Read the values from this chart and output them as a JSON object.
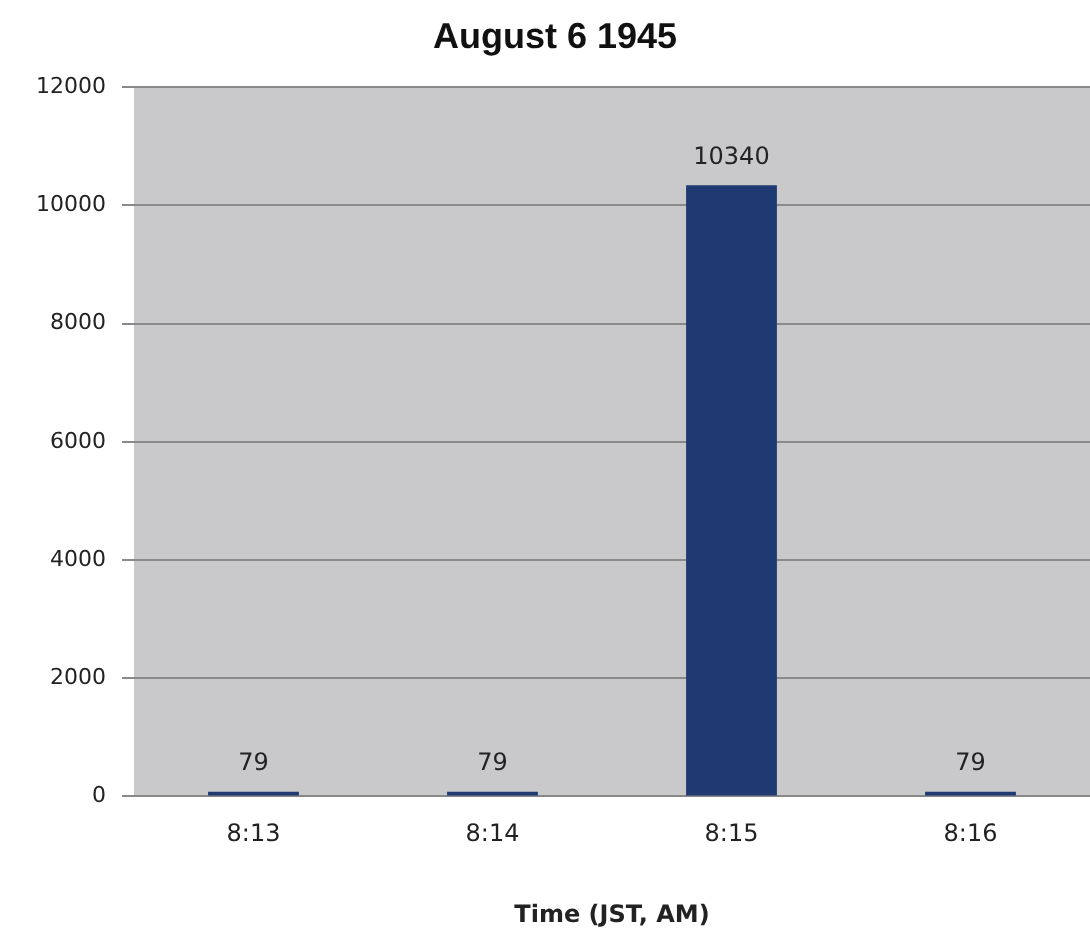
{
  "chart_data": {
    "type": "bar",
    "title": "August 6 1945",
    "xlabel": "Time (JST, AM)",
    "categories": [
      "8:13",
      "8:14",
      "8:15",
      "8:16"
    ],
    "values": [
      79,
      79,
      10340,
      79
    ],
    "color": "#1f3a73",
    "ylim": [
      0,
      12000
    ],
    "yticks": [
      0,
      2000,
      4000,
      6000,
      8000,
      10000,
      12000
    ],
    "grid": "y",
    "data_labels": true
  }
}
